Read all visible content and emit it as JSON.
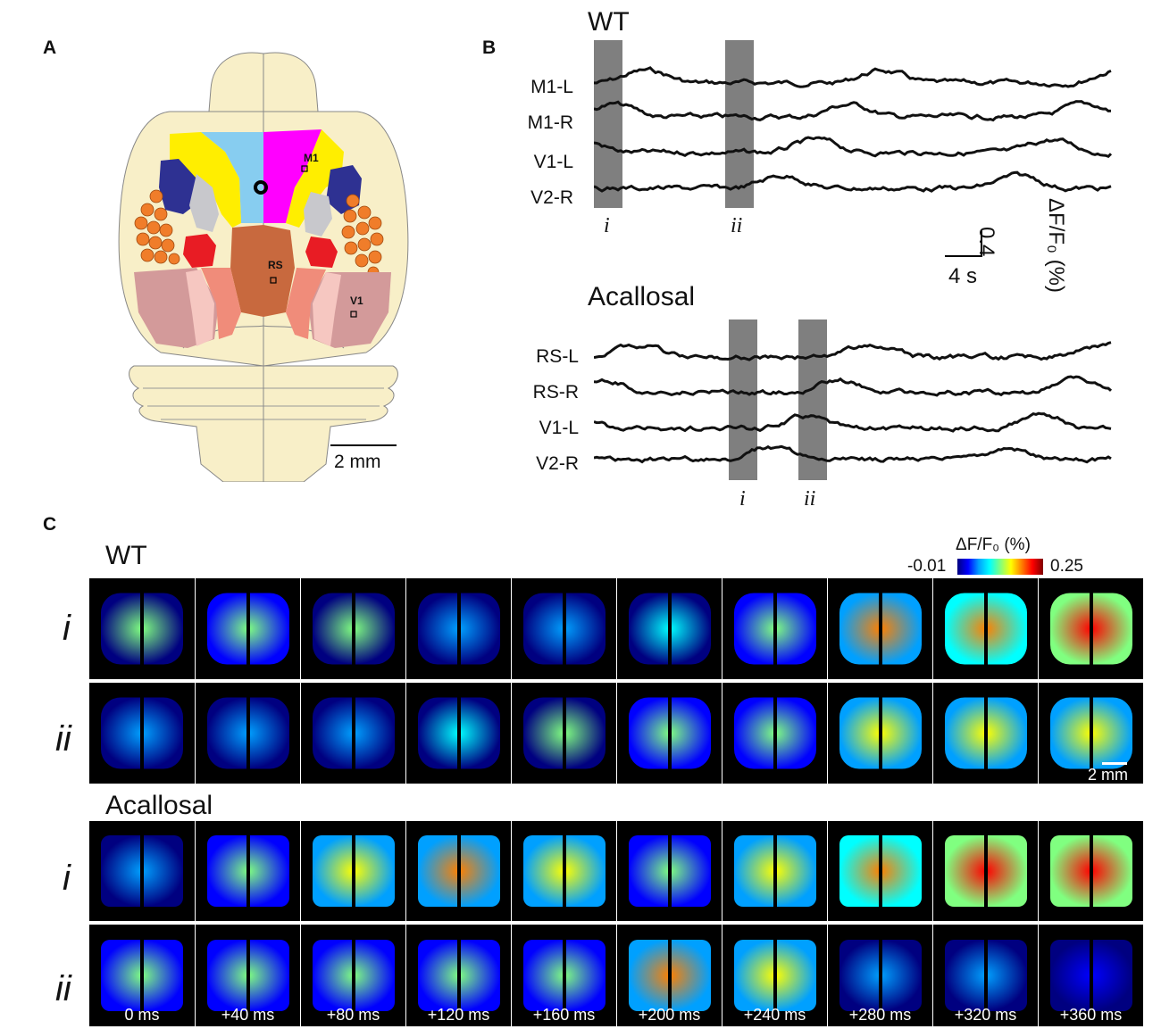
{
  "panels": {
    "a": "A",
    "b": "B",
    "c": "C"
  },
  "panel_a": {
    "region_labels": {
      "m1": "M1",
      "rs": "RS",
      "v1": "V1"
    },
    "scale_bar": "2 mm",
    "colors": {
      "brain": "#f8efc8",
      "m2": "#87cdf0",
      "m1": "#ff00ff",
      "s1_yellow": "#ffee00",
      "s2_navy": "#2e3192",
      "grey": "#c8c8cc",
      "barrel": "#f07d2a",
      "red": "#e81c24",
      "rs": "#c8693e",
      "v_outer": "#d39a9a",
      "v_mid": "#f08c7a",
      "v_pink": "#f6c7c1"
    }
  },
  "panel_b": {
    "wt": {
      "title": "WT",
      "traces": [
        "M1-L",
        "M1-R",
        "V1-L",
        "V2-R"
      ],
      "epochs": [
        "i",
        "ii"
      ]
    },
    "acallosal": {
      "title": "Acallosal",
      "traces": [
        "RS-L",
        "RS-R",
        "V1-L",
        "V2-R"
      ],
      "epochs": [
        "i",
        "ii"
      ]
    },
    "scale": {
      "y_value": "0.4",
      "x_value": "4 s",
      "y_unit": "ΔF/F₀ (%)"
    }
  },
  "panel_c": {
    "wt_title": "WT",
    "acallosal_title": "Acallosal",
    "row_labels": [
      "i",
      "ii",
      "i",
      "ii"
    ],
    "colorbar": {
      "title": "ΔF/F₀ (%)",
      "min": "-0.01",
      "max": "0.25",
      "colormap": [
        "#000080",
        "#0000ff",
        "#00a0ff",
        "#00ffff",
        "#80ff80",
        "#ffff00",
        "#ff8000",
        "#ff0000",
        "#800000"
      ]
    },
    "scale_bar": "2 mm",
    "time_labels": [
      "0 ms",
      "+40 ms",
      "+80 ms",
      "+120 ms",
      "+160 ms",
      "+200 ms",
      "+240 ms",
      "+280 ms",
      "+320 ms",
      "+360 ms"
    ],
    "activity": {
      "wt_i": [
        0.35,
        0.4,
        0.35,
        0.2,
        0.2,
        0.25,
        0.45,
        0.6,
        0.7,
        0.75
      ],
      "wt_ii": [
        0.15,
        0.15,
        0.2,
        0.3,
        0.35,
        0.4,
        0.4,
        0.5,
        0.55,
        0.5
      ],
      "ac_i": [
        0.15,
        0.4,
        0.55,
        0.6,
        0.5,
        0.4,
        0.5,
        0.7,
        0.75,
        0.75
      ],
      "ac_ii": [
        0.4,
        0.45,
        0.4,
        0.45,
        0.45,
        0.6,
        0.5,
        0.2,
        0.1,
        0.05
      ]
    }
  }
}
